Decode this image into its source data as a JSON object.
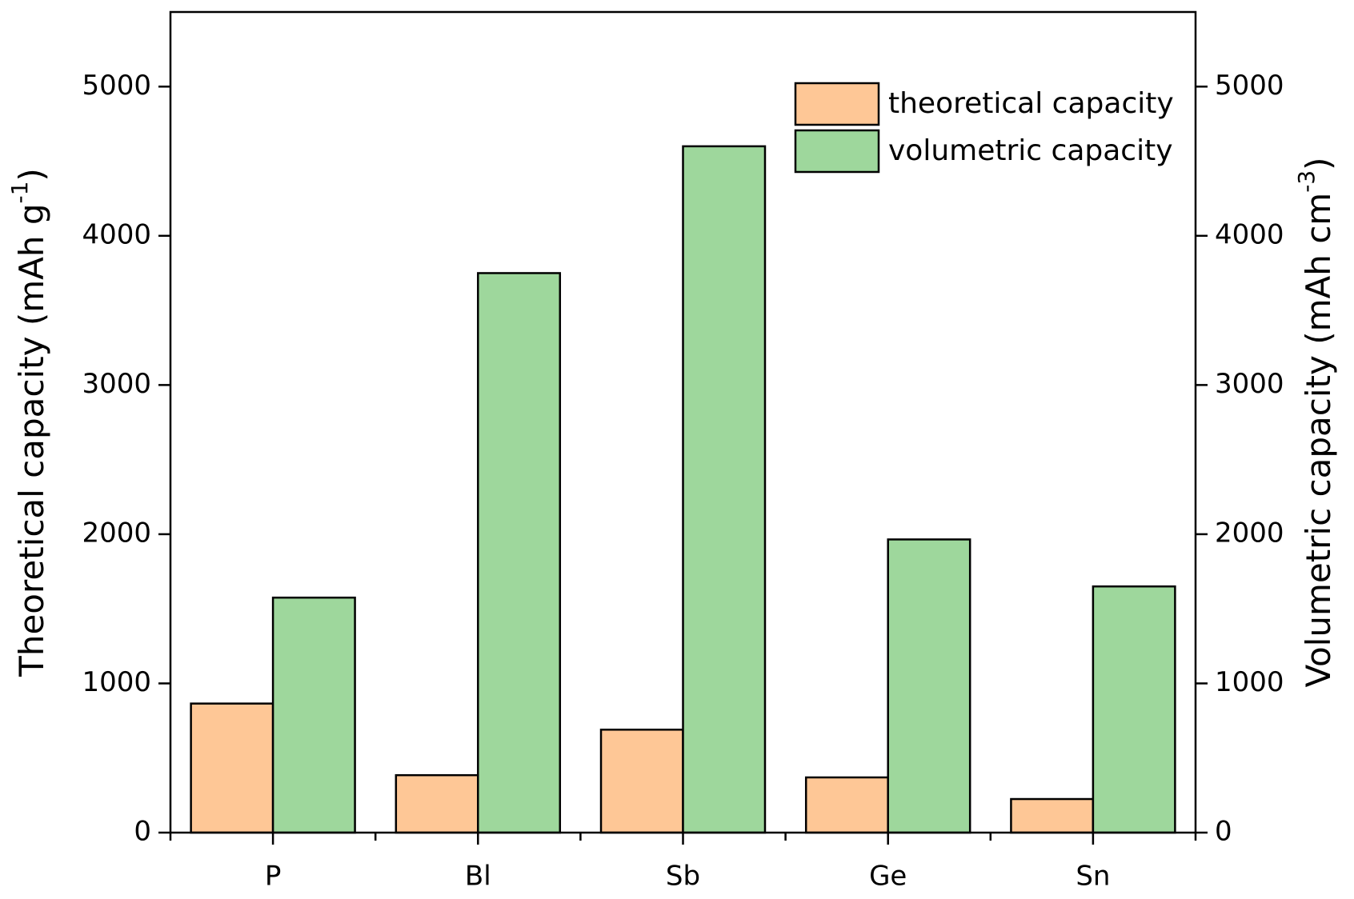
{
  "chart_data": {
    "type": "bar",
    "categories": [
      "P",
      "Bl",
      "Sb",
      "Ge",
      "Sn"
    ],
    "series": [
      {
        "name": "theoretical capacity",
        "color": "#fec796",
        "values": [
          865,
          385,
          690,
          370,
          225
        ]
      },
      {
        "name": "volumetric capacity",
        "color": "#9ed79c",
        "axis": "y2",
        "values": [
          1575,
          3750,
          4600,
          1965,
          1650
        ]
      }
    ],
    "ylabel": [
      "Theoretical capacity (mAh g",
      "-1",
      ")"
    ],
    "y2label": [
      "Volumetric capacity (mAh cm",
      "-3",
      ")"
    ],
    "ylim": [
      0,
      5500
    ],
    "yticks": [
      0,
      1000,
      2000,
      3000,
      4000,
      5000
    ],
    "y2lim": [
      0,
      5500
    ],
    "y2ticks": [
      0,
      1000,
      2000,
      3000,
      4000,
      5000
    ],
    "legend": "upper-right",
    "grid": false
  }
}
